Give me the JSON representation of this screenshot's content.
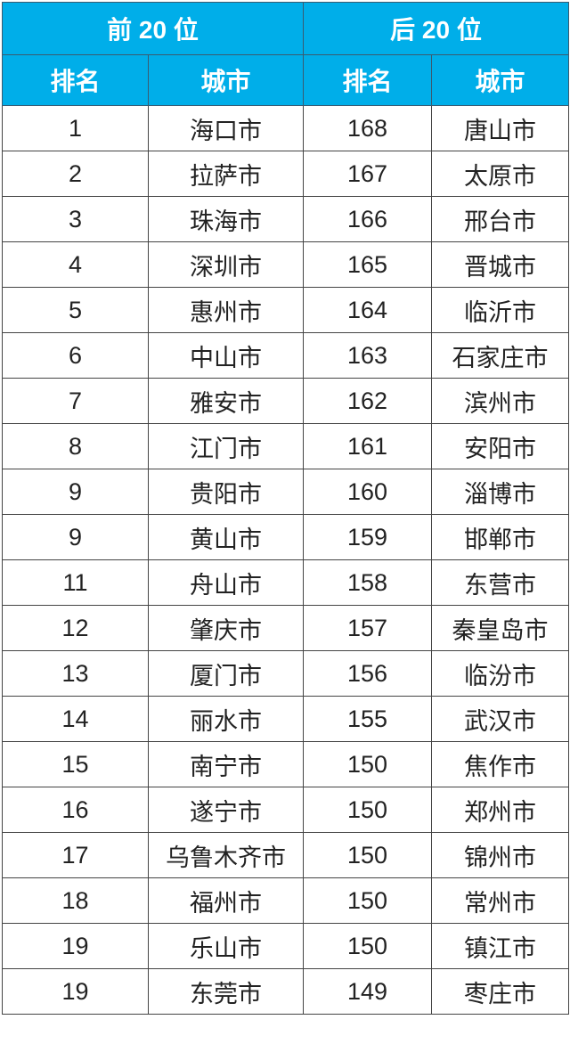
{
  "header": {
    "top_group": "前 20 位",
    "bottom_group": "后 20 位",
    "rank_label": "排名",
    "city_label": "城市"
  },
  "colors": {
    "header_bg": "#00aee9",
    "header_text": "#ffffff"
  },
  "rows": [
    {
      "top_rank": "1",
      "top_city": "海口市",
      "bottom_rank": "168",
      "bottom_city": "唐山市"
    },
    {
      "top_rank": "2",
      "top_city": "拉萨市",
      "bottom_rank": "167",
      "bottom_city": "太原市"
    },
    {
      "top_rank": "3",
      "top_city": "珠海市",
      "bottom_rank": "166",
      "bottom_city": "邢台市"
    },
    {
      "top_rank": "4",
      "top_city": "深圳市",
      "bottom_rank": "165",
      "bottom_city": "晋城市"
    },
    {
      "top_rank": "5",
      "top_city": "惠州市",
      "bottom_rank": "164",
      "bottom_city": "临沂市"
    },
    {
      "top_rank": "6",
      "top_city": "中山市",
      "bottom_rank": "163",
      "bottom_city": "石家庄市"
    },
    {
      "top_rank": "7",
      "top_city": "雅安市",
      "bottom_rank": "162",
      "bottom_city": "滨州市"
    },
    {
      "top_rank": "8",
      "top_city": "江门市",
      "bottom_rank": "161",
      "bottom_city": "安阳市"
    },
    {
      "top_rank": "9",
      "top_city": "贵阳市",
      "bottom_rank": "160",
      "bottom_city": "淄博市"
    },
    {
      "top_rank": "9",
      "top_city": "黄山市",
      "bottom_rank": "159",
      "bottom_city": "邯郸市"
    },
    {
      "top_rank": "11",
      "top_city": "舟山市",
      "bottom_rank": "158",
      "bottom_city": "东营市"
    },
    {
      "top_rank": "12",
      "top_city": "肇庆市",
      "bottom_rank": "157",
      "bottom_city": "秦皇岛市"
    },
    {
      "top_rank": "13",
      "top_city": "厦门市",
      "bottom_rank": "156",
      "bottom_city": "临汾市"
    },
    {
      "top_rank": "14",
      "top_city": "丽水市",
      "bottom_rank": "155",
      "bottom_city": "武汉市"
    },
    {
      "top_rank": "15",
      "top_city": "南宁市",
      "bottom_rank": "150",
      "bottom_city": "焦作市"
    },
    {
      "top_rank": "16",
      "top_city": "遂宁市",
      "bottom_rank": "150",
      "bottom_city": "郑州市"
    },
    {
      "top_rank": "17",
      "top_city": "乌鲁木齐市",
      "bottom_rank": "150",
      "bottom_city": "锦州市"
    },
    {
      "top_rank": "18",
      "top_city": "福州市",
      "bottom_rank": "150",
      "bottom_city": "常州市"
    },
    {
      "top_rank": "19",
      "top_city": "乐山市",
      "bottom_rank": "150",
      "bottom_city": "镇江市"
    },
    {
      "top_rank": "19",
      "top_city": "东莞市",
      "bottom_rank": "149",
      "bottom_city": "枣庄市"
    }
  ]
}
